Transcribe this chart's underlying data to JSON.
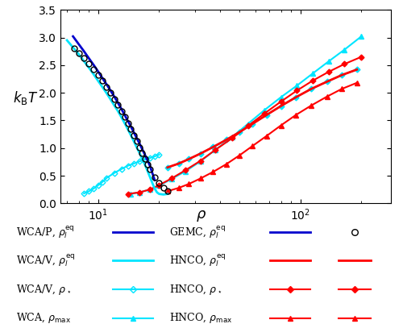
{
  "background_color": "#ffffff",
  "blue_color": "#0000CD",
  "cyan_color": "#00E5FF",
  "red_color": "#FF0000",
  "black_color": "#000000",
  "wcap_leq_rho": [
    7.5,
    8.0,
    8.5,
    9.0,
    9.5,
    10.0,
    10.5,
    11.0,
    11.5,
    12.0,
    12.5,
    13.0,
    13.5,
    14.0,
    14.5,
    15.0,
    15.5,
    16.0,
    16.5,
    17.0,
    17.5,
    18.0,
    18.5,
    19.0
  ],
  "wcap_leq_T": [
    3.02,
    2.88,
    2.75,
    2.62,
    2.5,
    2.38,
    2.26,
    2.15,
    2.04,
    1.93,
    1.82,
    1.71,
    1.6,
    1.49,
    1.39,
    1.28,
    1.18,
    1.08,
    0.98,
    0.88,
    0.78,
    0.68,
    0.55,
    0.42
  ],
  "wcav_leq_rho": [
    7.0,
    7.5,
    8.0,
    8.5,
    9.0,
    9.5,
    10.0,
    10.5,
    11.0,
    11.5,
    12.0,
    12.5,
    13.0,
    13.5,
    14.0,
    14.5,
    15.0,
    15.5,
    16.0,
    16.5,
    17.0,
    17.5,
    18.0,
    18.5,
    19.0,
    19.5,
    20.0,
    21.0,
    22.0
  ],
  "wcav_leq_T": [
    2.95,
    2.82,
    2.7,
    2.57,
    2.45,
    2.33,
    2.21,
    2.1,
    1.99,
    1.88,
    1.77,
    1.67,
    1.56,
    1.45,
    1.34,
    1.23,
    1.12,
    1.01,
    0.91,
    0.8,
    0.7,
    0.59,
    0.48,
    0.37,
    0.27,
    0.2,
    0.17,
    0.16,
    0.17
  ],
  "gemc_rho": [
    7.6,
    8.0,
    8.5,
    9.0,
    9.5,
    10.0,
    10.5,
    11.0,
    11.5,
    12.0,
    12.5,
    13.0,
    13.5,
    14.0,
    14.5,
    15.0,
    15.5,
    16.0,
    16.5,
    17.0,
    17.5,
    18.0,
    19.0,
    20.0,
    21.0,
    22.0
  ],
  "gemc_T": [
    2.8,
    2.72,
    2.63,
    2.53,
    2.43,
    2.32,
    2.22,
    2.11,
    2.0,
    1.89,
    1.78,
    1.67,
    1.56,
    1.45,
    1.34,
    1.23,
    1.12,
    1.01,
    0.91,
    0.81,
    0.71,
    0.62,
    0.47,
    0.37,
    0.28,
    0.22
  ],
  "wcav_star_rho": [
    8.5,
    9.0,
    9.5,
    10.0,
    10.5,
    11.0,
    12.0,
    13.0,
    14.0,
    15.0,
    16.0,
    17.0,
    18.0,
    19.0,
    20.0
  ],
  "wcav_star_T": [
    0.18,
    0.22,
    0.27,
    0.33,
    0.39,
    0.46,
    0.55,
    0.62,
    0.68,
    0.72,
    0.76,
    0.79,
    0.82,
    0.85,
    0.88
  ],
  "wca_max_rho": [
    14.5,
    16.0,
    18.0,
    20.0,
    23.0,
    27.0,
    32.0,
    38.0,
    46.0,
    55.0,
    66.0,
    80.0,
    96.0,
    115.0,
    138.0,
    165.0,
    200.0
  ],
  "wca_max_T": [
    0.17,
    0.2,
    0.25,
    0.32,
    0.44,
    0.58,
    0.76,
    0.97,
    1.2,
    1.44,
    1.68,
    1.92,
    2.13,
    2.35,
    2.57,
    2.78,
    3.02
  ],
  "hnco_star_rho": [
    14.0,
    16.0,
    18.0,
    20.0,
    23.0,
    27.0,
    32.0,
    38.0,
    46.0,
    55.0,
    66.0,
    80.0,
    96.0,
    115.0,
    138.0,
    165.0,
    200.0
  ],
  "hnco_star_T": [
    0.17,
    0.2,
    0.25,
    0.33,
    0.45,
    0.6,
    0.77,
    0.97,
    1.18,
    1.4,
    1.62,
    1.84,
    2.04,
    2.22,
    2.38,
    2.52,
    2.65
  ],
  "hnco_leq_rho": [
    22.0,
    25.0,
    28.0,
    32.0,
    37.0,
    43.0,
    50.0,
    58.0,
    68.0,
    80.0,
    95.0,
    113.0,
    135.0,
    160.0,
    190.0
  ],
  "hnco_leq_T": [
    0.65,
    0.72,
    0.8,
    0.9,
    1.02,
    1.15,
    1.29,
    1.44,
    1.6,
    1.76,
    1.92,
    2.07,
    2.2,
    2.32,
    2.42
  ],
  "hnco_max_rho": [
    22.0,
    25.0,
    28.0,
    32.0,
    37.0,
    43.0,
    50.0,
    58.0,
    68.0,
    80.0,
    95.0,
    113.0,
    135.0,
    160.0,
    190.0
  ],
  "hnco_max_T": [
    0.22,
    0.28,
    0.35,
    0.45,
    0.57,
    0.71,
    0.87,
    1.04,
    1.22,
    1.41,
    1.6,
    1.77,
    1.93,
    2.07,
    2.18
  ],
  "cyan_leq_dot_rho": [
    22.0,
    25.0,
    28.0,
    32.0,
    37.0,
    43.0,
    50.0,
    58.0,
    68.0,
    80.0,
    95.0,
    113.0,
    135.0,
    160.0,
    190.0
  ],
  "cyan_leq_dot_T": [
    0.65,
    0.72,
    0.8,
    0.9,
    1.02,
    1.15,
    1.29,
    1.44,
    1.6,
    1.76,
    1.92,
    2.07,
    2.2,
    2.32,
    2.42
  ],
  "xlim": [
    6.5,
    280
  ],
  "ylim": [
    0.0,
    3.5
  ],
  "yticks": [
    0,
    0.5,
    1.0,
    1.5,
    2.0,
    2.5,
    3.0,
    3.5
  ]
}
